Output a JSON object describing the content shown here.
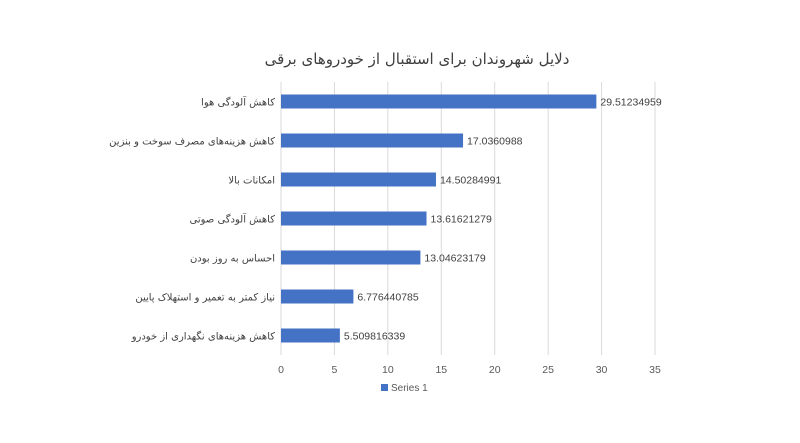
{
  "chart_data": {
    "type": "bar",
    "orientation": "horizontal",
    "title": "دلایل شهروندان برای استقبال از خودروهای برقی",
    "xlabel": "",
    "ylabel": "",
    "categories": [
      "کاهش آلودگی هوا",
      "کاهش هزینه‌های مصرف سوخت و بنزین",
      "امکانات بالا",
      "کاهش آلودگی صوتی",
      "احساس به روز بودن",
      "نیاز کمتر به تعمیر و استهلاک پایین",
      "کاهش هزینه‌های نگهداری از خودرو"
    ],
    "series": [
      {
        "name": "Series 1",
        "values": [
          29.51234959,
          17.0360988,
          14.50284991,
          13.61621279,
          13.04623179,
          6.776440785,
          5.509816339
        ],
        "value_labels": [
          "29.51234959",
          "17.0360988",
          "14.50284991",
          "13.61621279",
          "13.04623179",
          "6.776440785",
          "5.509816339"
        ],
        "color": "#4472c4"
      }
    ],
    "xlim": [
      0,
      35
    ],
    "xticks": [
      "0",
      "5",
      "10",
      "15",
      "20",
      "25",
      "30",
      "35"
    ],
    "grid": true,
    "legend": "bottom"
  }
}
